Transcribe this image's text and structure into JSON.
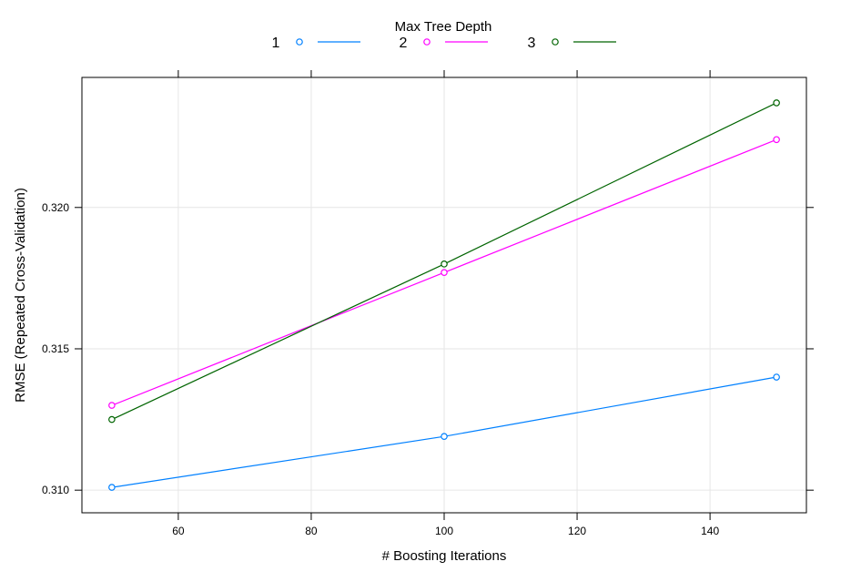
{
  "chart_data": {
    "type": "line",
    "legend": {
      "title": "Max Tree Depth",
      "placement": "top-center"
    },
    "x": [
      50,
      100,
      150
    ],
    "series": [
      {
        "name": "1",
        "color": "#0080ff",
        "values": [
          0.3101,
          0.3119,
          0.314
        ]
      },
      {
        "name": "2",
        "color": "#ff00ff",
        "values": [
          0.313,
          0.3177,
          0.3224
        ]
      },
      {
        "name": "3",
        "color": "#006400",
        "values": [
          0.3125,
          0.318,
          0.3237
        ]
      }
    ],
    "xlabel": "# Boosting Iterations",
    "ylabel": "RMSE (Repeated Cross-Validation)",
    "xlim": [
      45.5,
      154.5
    ],
    "ylim": [
      0.3092,
      0.3246
    ],
    "xticks": [
      60,
      80,
      100,
      120,
      140
    ],
    "xtick_labels": [
      "60",
      "80",
      "100",
      "120",
      "140"
    ],
    "yticks": [
      0.31,
      0.315,
      0.32
    ],
    "ytick_labels": [
      "0.310",
      "0.315",
      "0.320"
    ],
    "grid": true,
    "marker": "open-circle"
  }
}
